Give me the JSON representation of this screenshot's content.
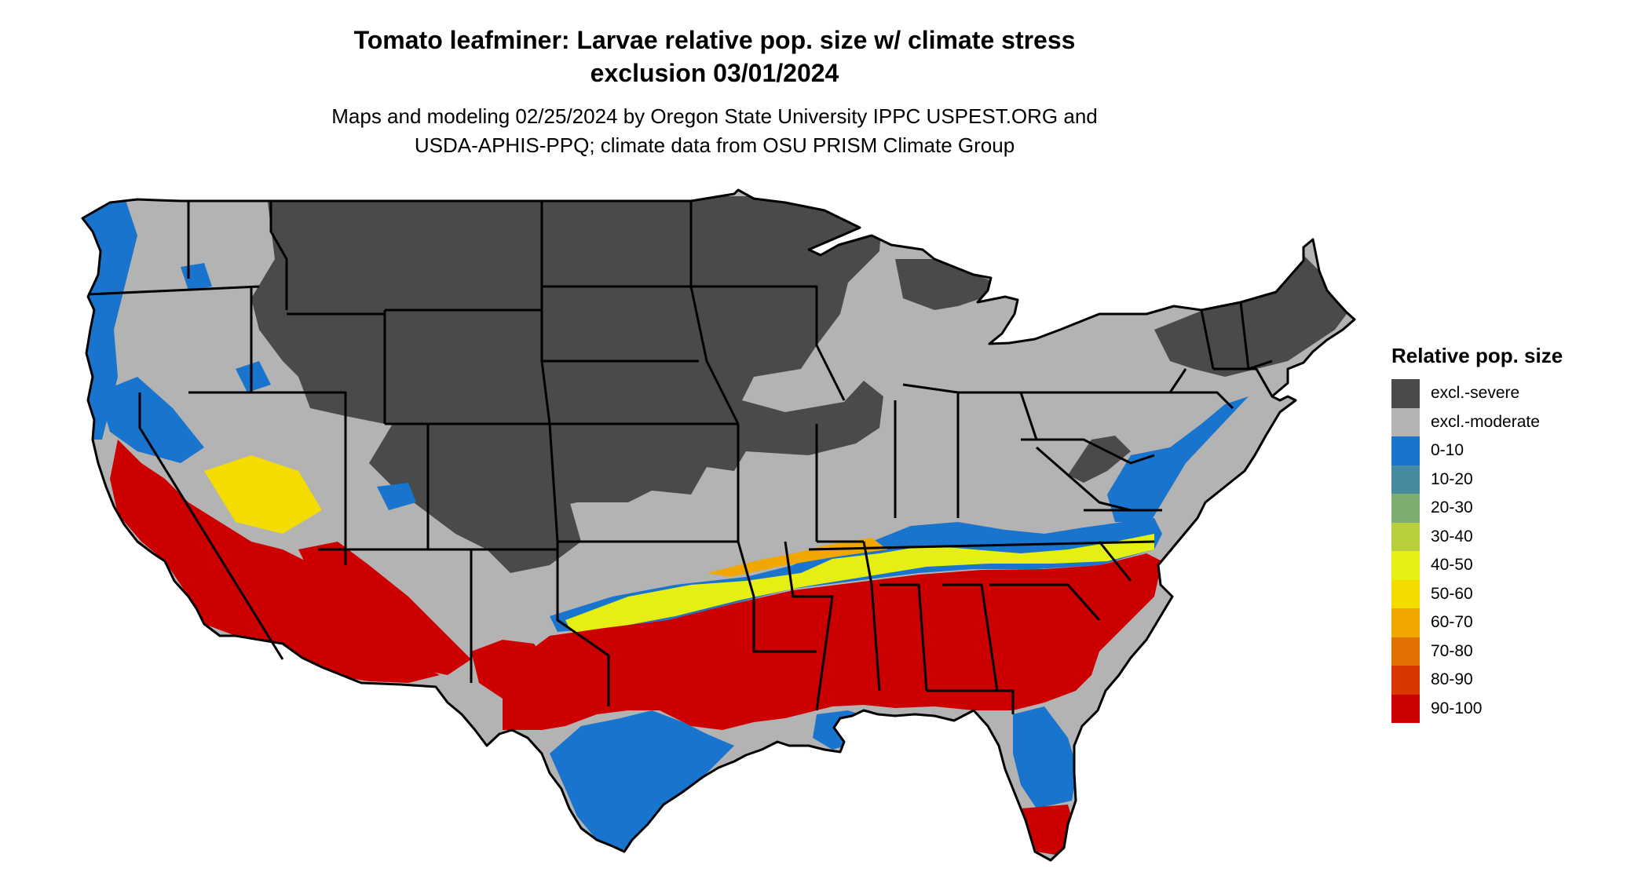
{
  "title_line1": "Tomato leafminer: Larvae relative pop. size w/ climate stress",
  "title_line2": "exclusion 03/01/2024",
  "subtitle_line1": "Maps and modeling 02/25/2024 by Oregon State University IPPC USPEST.ORG and",
  "subtitle_line2": "USDA-APHIS-PPQ; climate data from OSU PRISM Climate Group",
  "legend": {
    "title": "Relative pop. size",
    "items": [
      {
        "label": "excl.-severe",
        "color": "#4a4a4a"
      },
      {
        "label": "excl.-moderate",
        "color": "#b3b3b3"
      },
      {
        "label": "0-10",
        "color": "#1874cd"
      },
      {
        "label": "10-20",
        "color": "#458b9f"
      },
      {
        "label": "20-30",
        "color": "#7aad6e"
      },
      {
        "label": "30-40",
        "color": "#b7cf3a"
      },
      {
        "label": "40-50",
        "color": "#e6ef14"
      },
      {
        "label": "50-60",
        "color": "#f5dc00"
      },
      {
        "label": "60-70",
        "color": "#f0a800"
      },
      {
        "label": "70-80",
        "color": "#e07000"
      },
      {
        "label": "80-90",
        "color": "#d83800"
      },
      {
        "label": "90-100",
        "color": "#cd0000"
      }
    ]
  }
}
